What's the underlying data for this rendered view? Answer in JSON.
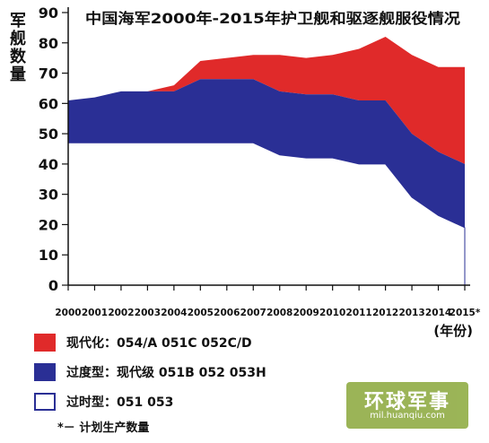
{
  "chart_data": {
    "type": "area",
    "stacked": true,
    "title": "中国海军2000年-2015年护卫舰和驱逐舰服役情况",
    "ylabel": "军舰数量",
    "xlabel": "(年份)",
    "ylim": [
      0,
      90
    ],
    "yticks": [
      0,
      10,
      20,
      30,
      40,
      50,
      60,
      70,
      80,
      90
    ],
    "x": [
      "2000",
      "2001",
      "2002",
      "2003",
      "2004",
      "2005",
      "2006",
      "2007",
      "2008",
      "2009",
      "2010",
      "2011",
      "2012",
      "2013",
      "2014",
      "2015*"
    ],
    "series": [
      {
        "name": "过时型：051  053",
        "color": "#ffffff",
        "values": [
          47,
          47,
          47,
          47,
          47,
          47,
          47,
          47,
          43,
          42,
          42,
          40,
          40,
          29,
          23,
          19
        ]
      },
      {
        "name": "过度型：现代级  051B  052  053H",
        "color": "#2a2f95",
        "values": [
          14,
          15,
          17,
          17,
          17,
          21,
          21,
          21,
          21,
          21,
          21,
          21,
          21,
          21,
          21,
          21
        ]
      },
      {
        "name": "现代化：054/A 051C 052C/D",
        "color": "#e02a2a",
        "values": [
          0,
          0,
          0,
          0,
          2,
          6,
          7,
          8,
          12,
          12,
          13,
          17,
          21,
          26,
          28,
          32
        ]
      }
    ],
    "totals": [
      61,
      62,
      64,
      64,
      66,
      74,
      75,
      76,
      76,
      75,
      76,
      78,
      82,
      76,
      72,
      72
    ],
    "footnote": "*－  计划生产数量"
  },
  "legend": [
    {
      "label": "现代化：054/A 051C 052C/D",
      "color": "#e02a2a"
    },
    {
      "label": "过度型：现代级  051B  052  053H",
      "color": "#2a2f95"
    },
    {
      "label": "过时型：051  053",
      "color": "#ffffff"
    }
  ],
  "watermark": {
    "main": "环球军事",
    "sub": "mil.huanqiu.com"
  }
}
